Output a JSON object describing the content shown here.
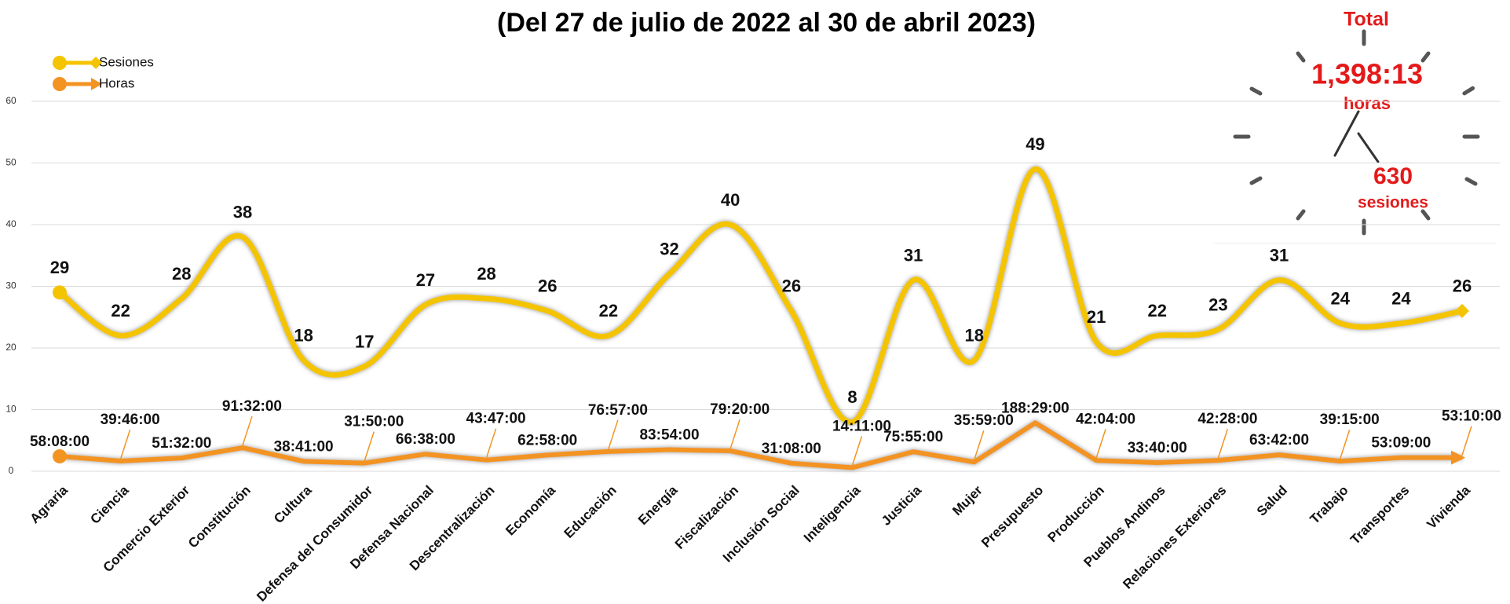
{
  "chart_data": {
    "type": "line",
    "title": "(Del 27 de julio de 2022 al 30 de abril 2023)",
    "categories": [
      "Agraria",
      "Ciencia",
      "Comercio Exterior",
      "Constitución",
      "Cultura",
      "Defensa del Consumidor",
      "Defensa Nacional",
      "Descentralización",
      "Economía",
      "Educación",
      "Energía",
      "Fiscalización",
      "Inclusión Social",
      "Inteligencia",
      "Justicia",
      "Mujer",
      "Presupuesto",
      "Producción",
      "Pueblos Andinos",
      "Relaciones Exteriores",
      "Salud",
      "Trabajo",
      "Transportes",
      "Vivienda"
    ],
    "series": [
      {
        "name": "Sesiones",
        "color": "#f5c400",
        "values": [
          29,
          22,
          28,
          38,
          18,
          17,
          27,
          28,
          26,
          22,
          32,
          40,
          26,
          8,
          31,
          18,
          49,
          21,
          22,
          23,
          31,
          24,
          24,
          26
        ]
      },
      {
        "name": "Horas",
        "color": "#f39322",
        "values": [
          2.4222,
          1.6569,
          2.1472,
          3.8139,
          1.6118,
          1.3264,
          2.7764,
          1.8243,
          2.6236,
          3.2063,
          3.4958,
          3.3056,
          1.2972,
          0.591,
          3.1632,
          1.4993,
          7.8535,
          1.7528,
          1.4028,
          1.7694,
          2.6542,
          1.6354,
          2.2146,
          2.2153
        ],
        "value_labels": [
          "58:08:00",
          "39:46:00",
          "51:32:00",
          "91:32:00",
          "38:41:00",
          "31:50:00",
          "66:38:00",
          "43:47:00",
          "62:58:00",
          "76:57:00",
          "83:54:00",
          "79:20:00",
          "31:08:00",
          "14:11:00",
          "75:55:00",
          "35:59:00",
          "188:29:00",
          "42:04:00",
          "33:40:00",
          "42:28:00",
          "63:42:00",
          "39:15:00",
          "53:09:00",
          "53:10:00"
        ]
      }
    ],
    "ylim": [
      0,
      60
    ],
    "yticks": [
      0,
      10,
      20,
      30,
      40,
      50,
      60
    ],
    "grid": true,
    "legend": "top-left",
    "annotations": {
      "total_label": "Total",
      "hours": "1,398:13",
      "hours_unit": "horas",
      "sessions": "630",
      "sessions_unit": "sesiones"
    }
  }
}
